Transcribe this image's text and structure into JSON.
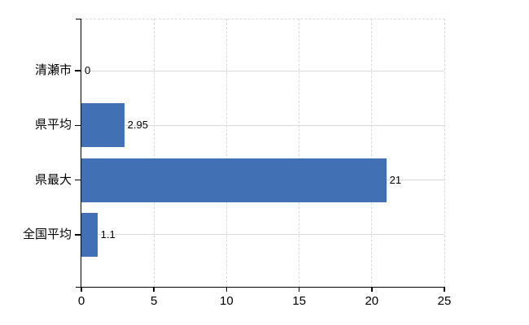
{
  "chart_data": {
    "type": "bar",
    "orientation": "horizontal",
    "title": "",
    "categories": [
      "清瀬市",
      "県平均",
      "県最大",
      "全国平均"
    ],
    "values": [
      0,
      2.95,
      21,
      1.1
    ],
    "value_labels": [
      "0",
      "2.95",
      "21",
      "1.1"
    ],
    "x_ticks": [
      0,
      5,
      10,
      15,
      20,
      25
    ],
    "x_tick_labels": [
      "0",
      "5",
      "10",
      "15",
      "20",
      "25"
    ],
    "xlim": [
      0,
      25
    ],
    "grid": true,
    "legend": "none",
    "colors": {
      "bar": "#4171b4",
      "grid": "#d9d9d9",
      "axis": "#000000",
      "text": "#000000",
      "background": "#ffffff"
    }
  }
}
